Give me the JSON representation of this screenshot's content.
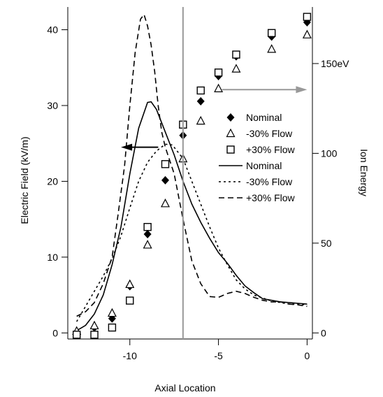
{
  "chart_data": {
    "type": "line",
    "xlabel": "Axial Location",
    "ylabel_left": "Electric Field (kV/m)",
    "ylabel_right": "Ion Energy",
    "xlim": [
      -13.5,
      0.3
    ],
    "ylim_left": [
      -0.8,
      43
    ],
    "ylim_right": [
      -3.38,
      181.5
    ],
    "x_ticks": [
      -10,
      -5,
      0
    ],
    "x_tick_labels": [
      "-10",
      "-5",
      "0"
    ],
    "y_left_ticks": [
      0,
      10,
      20,
      30,
      40
    ],
    "y_left_tick_labels": [
      "0",
      "10",
      "20",
      "30",
      "40"
    ],
    "y_right_ticks": [
      0,
      50,
      100,
      150
    ],
    "y_right_tick_labels": [
      "0",
      "50",
      "100",
      "150eV"
    ],
    "vertical_marker_x": -7,
    "arrows": [
      {
        "direction": "left",
        "axis": "Electric Field",
        "color": "#000000"
      },
      {
        "direction": "right",
        "axis": "Ion Energy",
        "color": "#999999"
      }
    ],
    "grid": false,
    "legend_position": "right-center",
    "ion_energy_series": [
      {
        "name": "Nominal",
        "marker": "diamond",
        "x": [
          -13,
          -12,
          -11,
          -10,
          -9,
          -8,
          -7,
          -6,
          -5,
          -4,
          -2,
          0
        ],
        "y": [
          0,
          3,
          8,
          26,
          55,
          85,
          110,
          129,
          143,
          154,
          165,
          173
        ]
      },
      {
        "name": "-30% Flow",
        "marker": "triangle",
        "x": [
          -13,
          -12,
          -11,
          -10,
          -9,
          -8,
          -7,
          -6,
          -5,
          -4,
          -2,
          0
        ],
        "y": [
          1,
          4,
          11,
          27,
          49,
          72,
          97,
          118,
          136,
          147,
          158,
          166
        ]
      },
      {
        "name": "+30% Flow",
        "marker": "square",
        "x": [
          -13,
          -12,
          -11,
          -10,
          -9,
          -8,
          -7,
          -6,
          -5,
          -4,
          -2,
          0
        ],
        "y": [
          -1,
          -1,
          3,
          18,
          59,
          94,
          116,
          135,
          145,
          155,
          167,
          176
        ]
      }
    ],
    "electric_field_series": [
      {
        "name": "Nominal",
        "style": "solid",
        "x": [
          -13,
          -12.5,
          -12,
          -11.5,
          -11,
          -10.5,
          -10,
          -9.5,
          -9,
          -8.8,
          -8.5,
          -8,
          -7.5,
          -7,
          -6.5,
          -6,
          -5.5,
          -5,
          -4.5,
          -4,
          -3.5,
          -3,
          -2.5,
          -2,
          -1.5,
          -1,
          -0.5,
          0
        ],
        "y": [
          0.3,
          1,
          2.5,
          5,
          9,
          14,
          21,
          27,
          30.4,
          30.5,
          29.5,
          26.5,
          23.5,
          20,
          17,
          14.6,
          12.5,
          10.6,
          9.2,
          7.6,
          6.2,
          5.3,
          4.5,
          4.3,
          4.1,
          4,
          3.9,
          3.8
        ]
      },
      {
        "name": "-30% Flow",
        "style": "dotted",
        "x": [
          -13,
          -12.5,
          -12,
          -11.5,
          -11,
          -10.5,
          -10,
          -9.5,
          -9,
          -8.5,
          -8,
          -7.6,
          -7,
          -6.5,
          -6,
          -5.5,
          -5,
          -4.5,
          -4,
          -3.5,
          -3,
          -2.5,
          -2,
          -1.5,
          -1,
          -0.5,
          0
        ],
        "y": [
          1.5,
          3.5,
          5.5,
          7.5,
          9.8,
          12.8,
          16.5,
          20,
          22.5,
          24,
          24.9,
          24.8,
          23,
          20,
          17,
          14,
          11.2,
          9,
          7,
          5.8,
          5,
          4.6,
          4.2,
          4,
          3.8,
          3.8,
          3.7
        ]
      },
      {
        "name": "+30% Flow",
        "style": "dashed",
        "x": [
          -13,
          -12.5,
          -12,
          -11.5,
          -11,
          -10.7,
          -10.3,
          -10,
          -9.7,
          -9.4,
          -9.2,
          -9,
          -8.8,
          -8.6,
          -8.4,
          -8.2,
          -8,
          -7.5,
          -7,
          -6.5,
          -6,
          -5.5,
          -5,
          -4.5,
          -4,
          -3.5,
          -3,
          -2.5,
          -2,
          -1.5,
          -1,
          -0.5,
          0
        ],
        "y": [
          2.2,
          2.8,
          4,
          6.5,
          10,
          15,
          22,
          30,
          37,
          41.4,
          42,
          40.5,
          38,
          34.5,
          30,
          26.5,
          24.5,
          21,
          15,
          9.5,
          6.5,
          4.8,
          4.7,
          5.2,
          5.5,
          5.2,
          4.7,
          4.3,
          4.1,
          4.1,
          3.8,
          3.7,
          3.5
        ]
      }
    ],
    "legend": {
      "entries": [
        {
          "label": "Nominal",
          "symbol": "diamond"
        },
        {
          "label": "-30% Flow",
          "symbol": "triangle"
        },
        {
          "label": "+30% Flow",
          "symbol": "square"
        },
        {
          "label": "Nominal",
          "symbol": "solid"
        },
        {
          "label": "-30% Flow",
          "symbol": "dotted"
        },
        {
          "label": "+30% Flow",
          "symbol": "dashed"
        }
      ]
    },
    "colors": {
      "ink": "#000000",
      "marker_line": "#999999"
    }
  }
}
